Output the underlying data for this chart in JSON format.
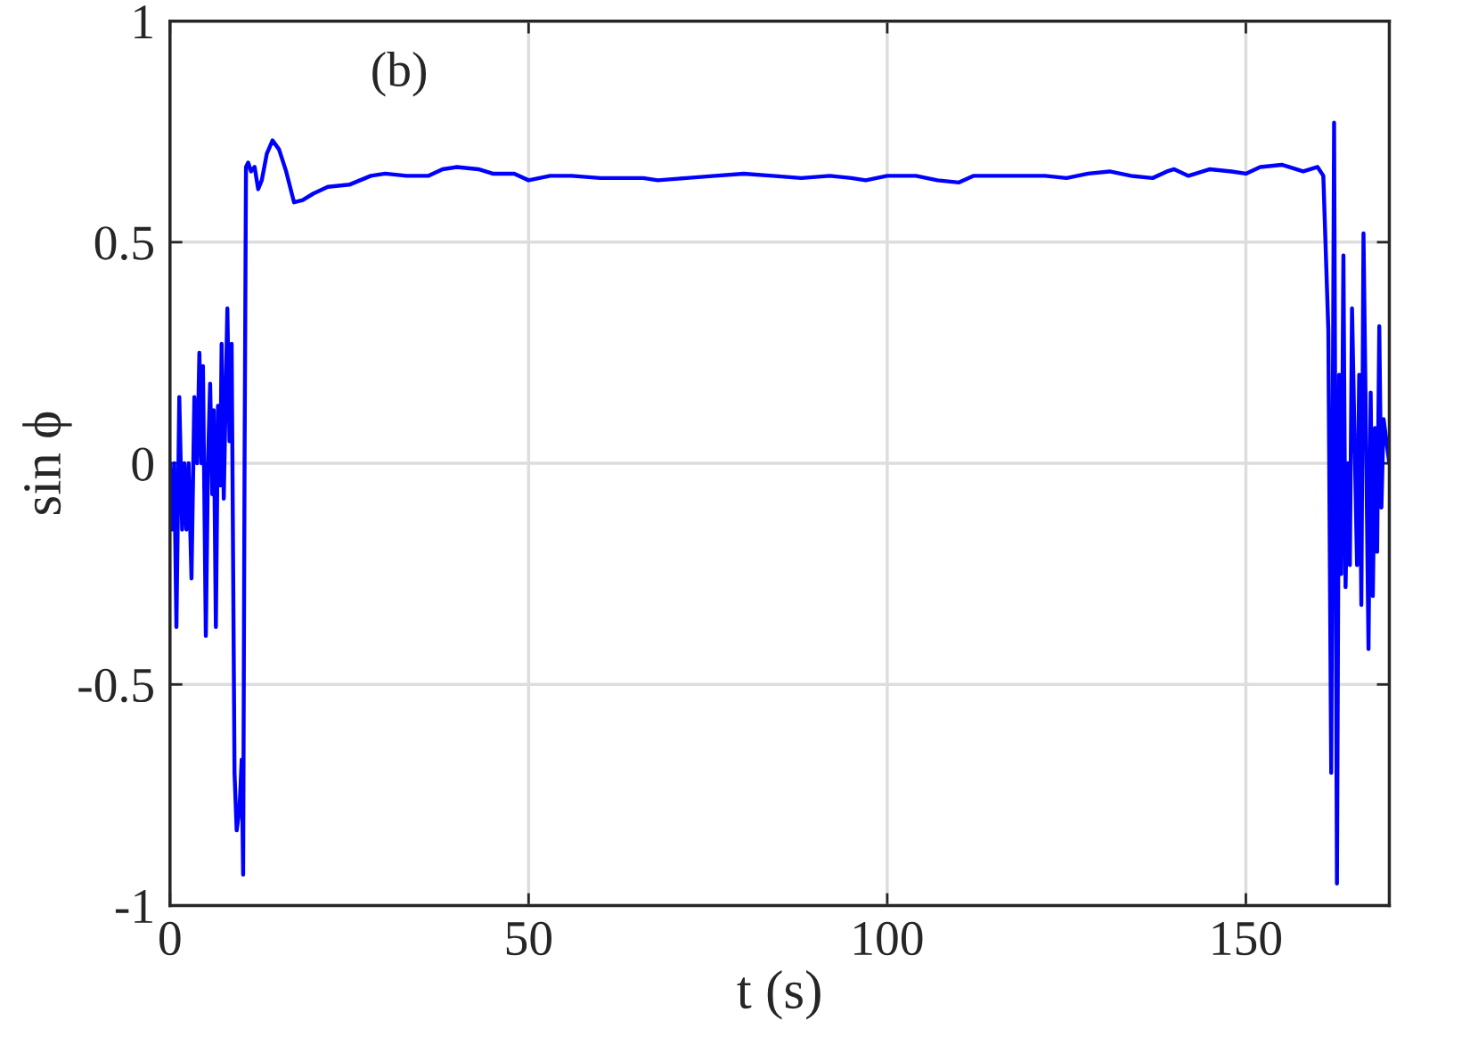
{
  "chart_data": {
    "type": "line",
    "xlabel": "t (s)",
    "ylabel": "sin ϕ",
    "annotations": [
      "(b)"
    ],
    "xlim": [
      0,
      170
    ],
    "ylim": [
      -1,
      1
    ],
    "xticks": [
      0,
      50,
      100,
      150
    ],
    "yticks": [
      -1,
      -0.5,
      0,
      0.5,
      1
    ],
    "grid": true,
    "marker": "none",
    "line_style": "solid",
    "series": [
      {
        "color": "#0000ff",
        "x": [
          0,
          0.3,
          0.6,
          0.9,
          1.3,
          1.7,
          2.0,
          2.3,
          2.6,
          3.0,
          3.4,
          3.8,
          4.1,
          4.4,
          4.6,
          5.0,
          5.3,
          5.6,
          5.9,
          6.1,
          6.4,
          6.7,
          7.0,
          7.2,
          7.5,
          7.8,
          8.0,
          8.3,
          8.6,
          9.0,
          9.3,
          9.7,
          10.0,
          10.2,
          10.4,
          10.6,
          10.9,
          11.3,
          11.8,
          12.3,
          12.8,
          13.5,
          14.3,
          15.2,
          16.2,
          17.3,
          18.5,
          20,
          22,
          25,
          28,
          30,
          33,
          36,
          38,
          40,
          43,
          45,
          48,
          50,
          53,
          56,
          60,
          63,
          66,
          68,
          72,
          76,
          80,
          84,
          88,
          92,
          95,
          97,
          100,
          104,
          107,
          110,
          112,
          115,
          118,
          122,
          125,
          128,
          131,
          134,
          137,
          139,
          140,
          142,
          145,
          148,
          150,
          152,
          155,
          158,
          160,
          160.8,
          161.5,
          161.9,
          162.3,
          162.7,
          163.0,
          163.3,
          163.6,
          163.9,
          164.2,
          164.5,
          164.8,
          165.1,
          165.5,
          165.8,
          166.1,
          166.4,
          166.8,
          167.1,
          167.4,
          167.7,
          168.0,
          168.3,
          168.6,
          168.9,
          169.2,
          170
        ],
        "values": [
          0.0,
          -0.15,
          0.0,
          -0.37,
          0.15,
          -0.15,
          0.0,
          -0.15,
          0.0,
          -0.26,
          0.15,
          0.0,
          0.25,
          0.0,
          0.22,
          -0.39,
          0.0,
          0.18,
          -0.07,
          0.12,
          -0.37,
          0.13,
          -0.05,
          0.27,
          -0.08,
          0.18,
          0.35,
          0.05,
          0.27,
          -0.7,
          -0.83,
          -0.78,
          -0.67,
          -0.93,
          0.0,
          0.67,
          0.68,
          0.66,
          0.67,
          0.62,
          0.64,
          0.7,
          0.73,
          0.71,
          0.66,
          0.59,
          0.595,
          0.61,
          0.625,
          0.63,
          0.65,
          0.655,
          0.65,
          0.65,
          0.665,
          0.67,
          0.665,
          0.655,
          0.655,
          0.64,
          0.65,
          0.65,
          0.645,
          0.645,
          0.645,
          0.64,
          0.645,
          0.65,
          0.655,
          0.65,
          0.645,
          0.65,
          0.645,
          0.64,
          0.65,
          0.65,
          0.64,
          0.635,
          0.65,
          0.65,
          0.65,
          0.65,
          0.645,
          0.655,
          0.66,
          0.65,
          0.645,
          0.66,
          0.665,
          0.65,
          0.665,
          0.66,
          0.655,
          0.67,
          0.675,
          0.66,
          0.67,
          0.65,
          0.3,
          -0.7,
          0.77,
          -0.95,
          0.2,
          -0.25,
          0.47,
          -0.28,
          0.0,
          -0.23,
          0.35,
          0.1,
          -0.23,
          0.2,
          -0.32,
          0.52,
          0.0,
          -0.42,
          0.16,
          -0.3,
          0.08,
          -0.2,
          0.31,
          -0.1,
          0.1,
          0.0
        ]
      }
    ]
  }
}
